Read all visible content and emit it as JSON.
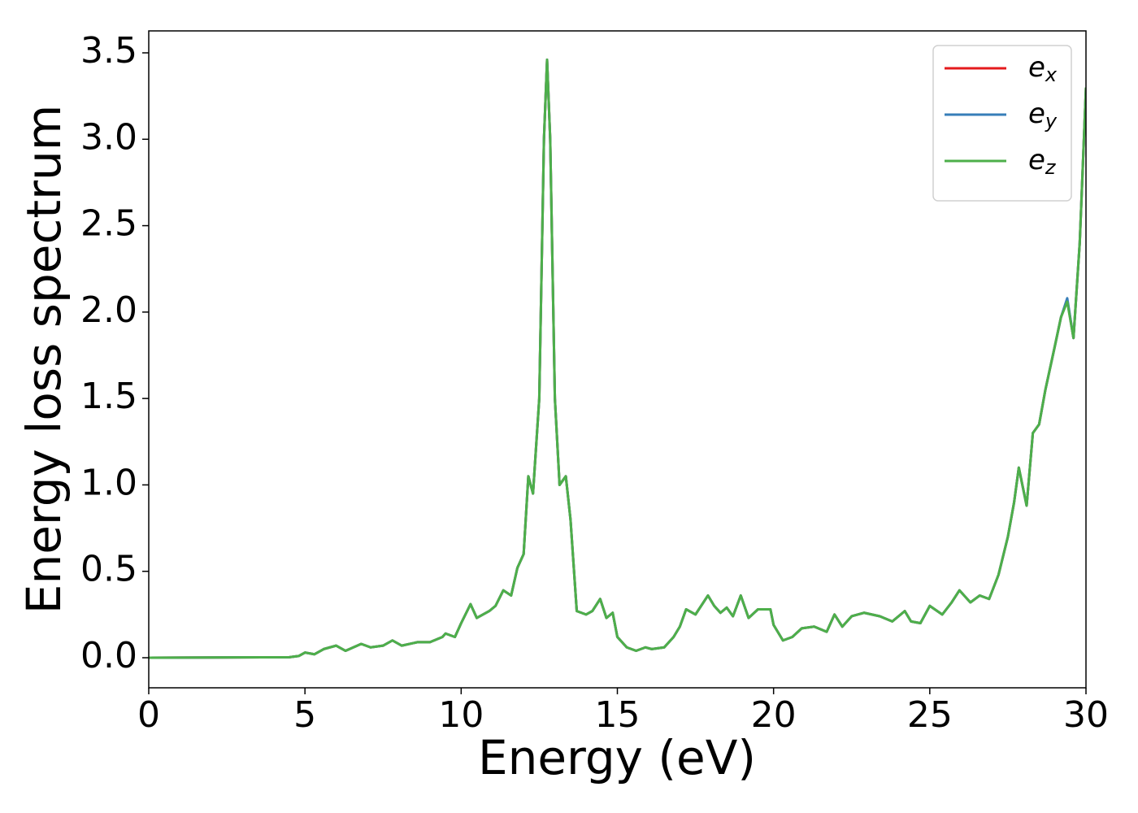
{
  "chart_data": {
    "type": "line",
    "xlabel": "Energy (eV)",
    "ylabel": "Energy loss spectrum",
    "x": [
      0,
      4.5,
      4.8,
      5.0,
      5.3,
      5.6,
      6.0,
      6.3,
      6.8,
      7.1,
      7.5,
      7.8,
      8.1,
      8.6,
      9.0,
      9.4,
      9.5,
      9.8,
      10.0,
      10.3,
      10.5,
      10.9,
      11.1,
      11.35,
      11.6,
      11.8,
      12.0,
      12.15,
      12.3,
      12.5,
      12.65,
      12.75,
      12.85,
      13.0,
      13.15,
      13.35,
      13.5,
      13.7,
      14.0,
      14.2,
      14.45,
      14.65,
      14.85,
      15.0,
      15.3,
      15.6,
      15.9,
      16.1,
      16.5,
      16.8,
      17.0,
      17.2,
      17.5,
      17.9,
      18.1,
      18.3,
      18.5,
      18.7,
      18.95,
      19.2,
      19.5,
      19.9,
      20.0,
      20.3,
      20.6,
      20.9,
      21.3,
      21.7,
      21.95,
      22.2,
      22.5,
      22.9,
      23.4,
      23.8,
      24.2,
      24.4,
      24.7,
      25.0,
      25.4,
      25.7,
      25.95,
      26.3,
      26.6,
      26.9,
      27.2,
      27.5,
      27.7,
      27.85,
      28.1,
      28.3,
      28.5,
      28.7,
      29.0,
      29.2,
      29.4,
      29.6,
      29.8,
      30.0
    ],
    "series": [
      {
        "name": "ex",
        "color": "#e41a1c",
        "values": [
          0,
          0.003,
          0.01,
          0.03,
          0.02,
          0.05,
          0.07,
          0.04,
          0.08,
          0.06,
          0.07,
          0.1,
          0.07,
          0.09,
          0.09,
          0.12,
          0.14,
          0.12,
          0.2,
          0.31,
          0.23,
          0.27,
          0.3,
          0.39,
          0.36,
          0.52,
          0.6,
          1.05,
          0.95,
          1.5,
          3.0,
          3.46,
          3.0,
          1.5,
          1.0,
          1.05,
          0.8,
          0.27,
          0.25,
          0.27,
          0.34,
          0.23,
          0.26,
          0.12,
          0.06,
          0.04,
          0.06,
          0.05,
          0.06,
          0.12,
          0.18,
          0.28,
          0.25,
          0.36,
          0.3,
          0.26,
          0.29,
          0.24,
          0.36,
          0.23,
          0.28,
          0.28,
          0.19,
          0.1,
          0.12,
          0.17,
          0.18,
          0.15,
          0.25,
          0.18,
          0.24,
          0.26,
          0.24,
          0.21,
          0.27,
          0.21,
          0.2,
          0.3,
          0.25,
          0.32,
          0.39,
          0.32,
          0.36,
          0.34,
          0.48,
          0.7,
          0.9,
          1.1,
          0.88,
          1.3,
          1.35,
          1.55,
          1.8,
          1.97,
          2.07,
          1.85,
          2.4,
          3.3
        ]
      },
      {
        "name": "ey",
        "color": "#377eb8",
        "values": [
          0,
          0.003,
          0.01,
          0.03,
          0.02,
          0.05,
          0.07,
          0.04,
          0.08,
          0.06,
          0.07,
          0.1,
          0.07,
          0.09,
          0.09,
          0.12,
          0.14,
          0.12,
          0.2,
          0.31,
          0.23,
          0.27,
          0.3,
          0.39,
          0.36,
          0.52,
          0.6,
          1.05,
          0.95,
          1.5,
          3.0,
          3.46,
          3.0,
          1.5,
          1.0,
          1.05,
          0.8,
          0.27,
          0.25,
          0.27,
          0.34,
          0.23,
          0.26,
          0.12,
          0.06,
          0.04,
          0.06,
          0.05,
          0.06,
          0.12,
          0.18,
          0.28,
          0.25,
          0.36,
          0.3,
          0.26,
          0.29,
          0.24,
          0.36,
          0.23,
          0.28,
          0.28,
          0.19,
          0.1,
          0.12,
          0.17,
          0.18,
          0.15,
          0.25,
          0.18,
          0.24,
          0.26,
          0.24,
          0.21,
          0.27,
          0.21,
          0.2,
          0.3,
          0.25,
          0.32,
          0.39,
          0.32,
          0.36,
          0.34,
          0.48,
          0.7,
          0.9,
          1.1,
          0.88,
          1.3,
          1.35,
          1.55,
          1.8,
          1.97,
          2.08,
          1.85,
          2.4,
          3.3
        ]
      },
      {
        "name": "ez",
        "color": "#4daf4a",
        "values": [
          0,
          0.003,
          0.01,
          0.03,
          0.02,
          0.05,
          0.07,
          0.04,
          0.08,
          0.06,
          0.07,
          0.1,
          0.07,
          0.09,
          0.09,
          0.12,
          0.14,
          0.12,
          0.2,
          0.31,
          0.23,
          0.27,
          0.3,
          0.39,
          0.36,
          0.52,
          0.6,
          1.05,
          0.95,
          1.5,
          3.0,
          3.46,
          3.0,
          1.5,
          1.0,
          1.05,
          0.8,
          0.27,
          0.25,
          0.27,
          0.34,
          0.23,
          0.26,
          0.12,
          0.06,
          0.04,
          0.06,
          0.05,
          0.06,
          0.12,
          0.18,
          0.28,
          0.25,
          0.36,
          0.3,
          0.26,
          0.29,
          0.24,
          0.36,
          0.23,
          0.28,
          0.28,
          0.19,
          0.1,
          0.12,
          0.17,
          0.18,
          0.15,
          0.25,
          0.18,
          0.24,
          0.26,
          0.24,
          0.21,
          0.27,
          0.21,
          0.2,
          0.3,
          0.25,
          0.32,
          0.39,
          0.32,
          0.36,
          0.34,
          0.48,
          0.7,
          0.9,
          1.1,
          0.88,
          1.3,
          1.35,
          1.55,
          1.8,
          1.97,
          2.06,
          1.85,
          2.4,
          3.3
        ]
      }
    ],
    "xlim": [
      0,
      30
    ],
    "xticks": [
      0,
      5,
      10,
      15,
      20,
      25,
      30
    ],
    "ylim": [
      -0.174,
      3.627
    ],
    "yticks": [
      {
        "value": 0,
        "label": "0.0"
      },
      0.5,
      {
        "value": 1,
        "label": "1.0"
      },
      1.5,
      {
        "value": 2,
        "label": "2.0"
      },
      2.5,
      {
        "value": 3,
        "label": "3.0"
      },
      3.5
    ],
    "grid": false,
    "legend": "upper right"
  }
}
